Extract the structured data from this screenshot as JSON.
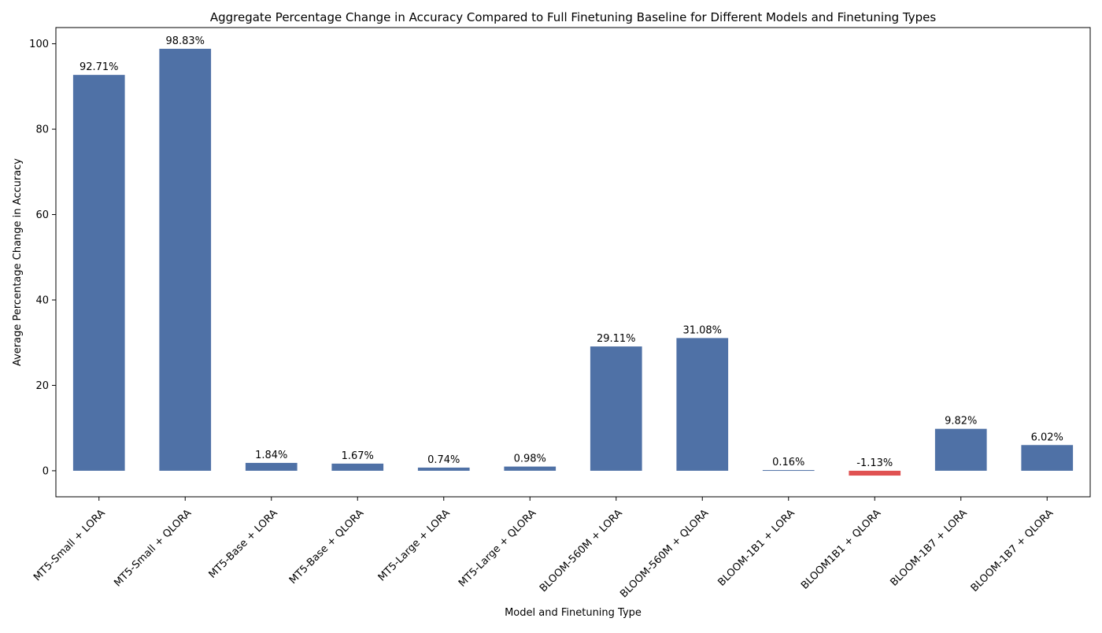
{
  "chart_data": {
    "type": "bar",
    "title": "Aggregate Percentage Change in Accuracy Compared to Full Finetuning Baseline for Different Models and Finetuning Types",
    "xlabel": "Model and Finetuning Type",
    "ylabel": "Average Percentage Change in Accuracy",
    "categories": [
      "MT5-Small + LORA",
      "MT5-Small + QLORA",
      "MT5-Base + LORA",
      "MT5-Base + QLORA",
      "MT5-Large + LORA",
      "MT5-Large + QLORA",
      "BLOOM-560M + LORA",
      "BLOOM-560M + QLORA",
      "BLOOM-1B1 + LORA",
      "BLOOM1B1 + QLORA",
      "BLOOM-1B7 + LORA",
      "BLOOM-1B7 + QLORA"
    ],
    "values": [
      92.71,
      98.83,
      1.84,
      1.67,
      0.74,
      0.98,
      29.11,
      31.08,
      0.16,
      -1.13,
      9.82,
      6.02
    ],
    "data_labels": [
      "92.71%",
      "98.83%",
      "1.84%",
      "1.67%",
      "0.74%",
      "0.98%",
      "29.11%",
      "31.08%",
      "0.16%",
      "-1.13%",
      "9.82%",
      "6.02%"
    ],
    "ylim": [
      -6.1,
      103.8
    ],
    "yticks": [
      0,
      20,
      40,
      60,
      80,
      100
    ],
    "grid": false,
    "legend": "none",
    "colors": {
      "positive": "#4f71a6",
      "negative": "#e05252"
    }
  }
}
